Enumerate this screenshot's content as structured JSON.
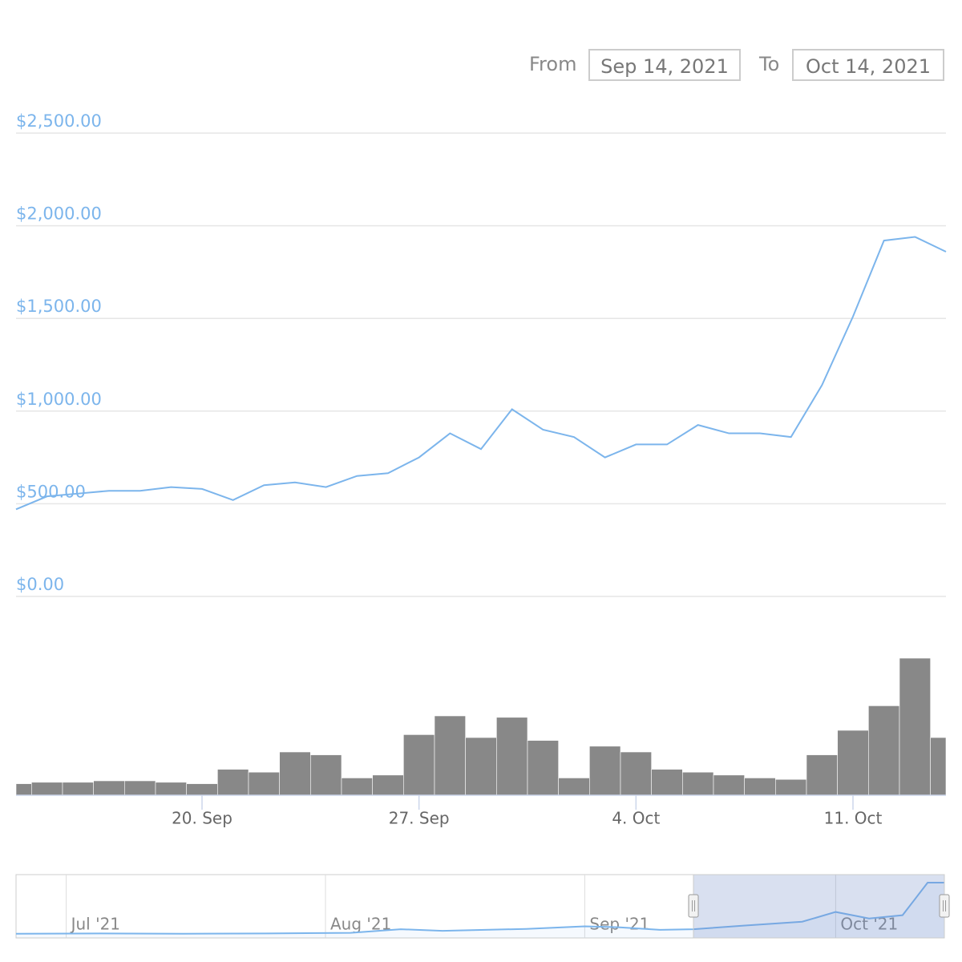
{
  "range_selector": {
    "from_label": "From",
    "from_value": "Sep 14, 2021",
    "to_label": "To",
    "to_value": "Oct 14, 2021"
  },
  "chart_data": {
    "type": "line",
    "color": "#7cb5ec",
    "grid": true,
    "x": [
      "2021-09-14",
      "2021-09-15",
      "2021-09-16",
      "2021-09-17",
      "2021-09-18",
      "2021-09-19",
      "2021-09-20",
      "2021-09-21",
      "2021-09-22",
      "2021-09-23",
      "2021-09-24",
      "2021-09-25",
      "2021-09-26",
      "2021-09-27",
      "2021-09-28",
      "2021-09-29",
      "2021-09-30",
      "2021-10-01",
      "2021-10-02",
      "2021-10-03",
      "2021-10-04",
      "2021-10-05",
      "2021-10-06",
      "2021-10-07",
      "2021-10-08",
      "2021-10-09",
      "2021-10-10",
      "2021-10-11",
      "2021-10-12",
      "2021-10-13",
      "2021-10-14"
    ],
    "values": [
      470,
      540,
      555,
      570,
      570,
      590,
      580,
      520,
      600,
      615,
      590,
      650,
      665,
      750,
      880,
      795,
      1010,
      900,
      860,
      750,
      820,
      820,
      925,
      880,
      880,
      860,
      1140,
      1510,
      1920,
      1940,
      1860
    ],
    "volume": {
      "color": "#888888",
      "values": [
        8,
        9,
        9,
        10,
        10,
        9,
        8,
        18,
        16,
        30,
        28,
        12,
        14,
        42,
        55,
        40,
        54,
        38,
        12,
        34,
        30,
        18,
        16,
        14,
        12,
        11,
        28,
        45,
        62,
        95,
        40
      ],
      "ylim": [
        0,
        100
      ]
    },
    "xlim": [
      "2021-09-14",
      "2021-10-14"
    ],
    "xticks": [
      {
        "value": "2021-09-20",
        "label": "20. Sep"
      },
      {
        "value": "2021-09-27",
        "label": "27. Sep"
      },
      {
        "value": "2021-10-04",
        "label": "4. Oct"
      },
      {
        "value": "2021-10-11",
        "label": "11. Oct"
      }
    ],
    "ylim": [
      0,
      2500
    ],
    "yticks": [
      {
        "value": 0,
        "label": "$0.00"
      },
      {
        "value": 500,
        "label": "$500.00"
      },
      {
        "value": 1000,
        "label": "$1,000.00"
      },
      {
        "value": 1500,
        "label": "$1,500.00"
      },
      {
        "value": 2000,
        "label": "$2,000.00"
      },
      {
        "value": 2500,
        "label": "$2,500.00"
      }
    ],
    "navigator": {
      "x": [
        "2021-06-25",
        "2021-07-05",
        "2021-07-15",
        "2021-07-25",
        "2021-08-04",
        "2021-08-10",
        "2021-08-15",
        "2021-08-25",
        "2021-09-01",
        "2021-09-05",
        "2021-09-10",
        "2021-09-14",
        "2021-09-20",
        "2021-09-27",
        "2021-10-01",
        "2021-10-05",
        "2021-10-09",
        "2021-10-12",
        "2021-10-14"
      ],
      "values": [
        330,
        340,
        330,
        340,
        360,
        470,
        420,
        480,
        560,
        530,
        450,
        470,
        580,
        700,
        1000,
        800,
        900,
        1900,
        1900
      ],
      "xlim": [
        "2021-06-25",
        "2021-10-14"
      ],
      "ylim": [
        300,
        2000
      ],
      "xticks": [
        {
          "value": "2021-07-01",
          "label": "Jul '21"
        },
        {
          "value": "2021-08-01",
          "label": "Aug '21"
        },
        {
          "value": "2021-09-01",
          "label": "Sep '21"
        },
        {
          "value": "2021-10-01",
          "label": "Oct '21"
        }
      ]
    }
  }
}
